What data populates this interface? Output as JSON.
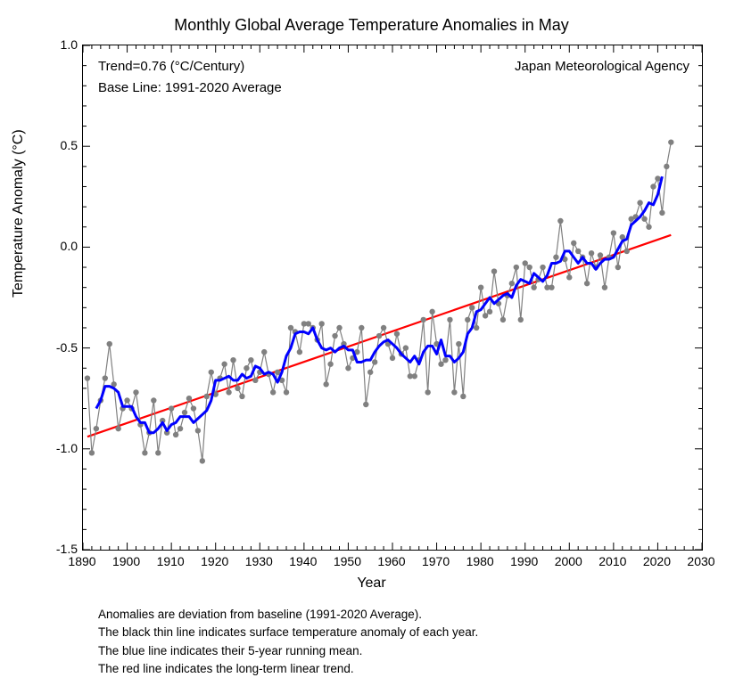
{
  "chart": {
    "type": "line-scatter",
    "title": "Monthly Global Average Temperature Anomalies in May",
    "ylabel": "Temperature Anomaly (°C)",
    "xlabel": "Year",
    "title_fontsize": 18,
    "label_fontsize": 16,
    "tick_fontsize": 14,
    "xlim": [
      1890,
      2030
    ],
    "ylim": [
      -1.5,
      1.0
    ],
    "xtick_step": 10,
    "ytick_step": 0.5,
    "minor_xtick_step": 2,
    "minor_ytick_step": 0.1,
    "background_color": "#ffffff",
    "border_color": "#000000",
    "tick_length_major": 8,
    "tick_length_minor": 4,
    "annotations": {
      "trend": "Trend=0.76 (°C/Century)",
      "baseline": "Base Line: 1991-2020 Average",
      "agency": "Japan Meteorological Agency",
      "annotation_fontsize": 15
    },
    "series": {
      "yearly": {
        "line_color": "#808080",
        "line_width": 1.2,
        "marker_color": "#808080",
        "marker_radius": 3.2,
        "years": [
          1891,
          1892,
          1893,
          1894,
          1895,
          1896,
          1897,
          1898,
          1899,
          1900,
          1901,
          1902,
          1903,
          1904,
          1905,
          1906,
          1907,
          1908,
          1909,
          1910,
          1911,
          1912,
          1913,
          1914,
          1915,
          1916,
          1917,
          1918,
          1919,
          1920,
          1921,
          1922,
          1923,
          1924,
          1925,
          1926,
          1927,
          1928,
          1929,
          1930,
          1931,
          1932,
          1933,
          1934,
          1935,
          1936,
          1937,
          1938,
          1939,
          1940,
          1941,
          1942,
          1943,
          1944,
          1945,
          1946,
          1947,
          1948,
          1949,
          1950,
          1951,
          1952,
          1953,
          1954,
          1955,
          1956,
          1957,
          1958,
          1959,
          1960,
          1961,
          1962,
          1963,
          1964,
          1965,
          1966,
          1967,
          1968,
          1969,
          1970,
          1971,
          1972,
          1973,
          1974,
          1975,
          1976,
          1977,
          1978,
          1979,
          1980,
          1981,
          1982,
          1983,
          1984,
          1985,
          1986,
          1987,
          1988,
          1989,
          1990,
          1991,
          1992,
          1993,
          1994,
          1995,
          1996,
          1997,
          1998,
          1999,
          2000,
          2001,
          2002,
          2003,
          2004,
          2005,
          2006,
          2007,
          2008,
          2009,
          2010,
          2011,
          2012,
          2013,
          2014,
          2015,
          2016,
          2017,
          2018,
          2019,
          2020,
          2021,
          2022,
          2023
        ],
        "values": [
          -0.65,
          -1.02,
          -0.9,
          -0.76,
          -0.65,
          -0.48,
          -0.68,
          -0.9,
          -0.8,
          -0.76,
          -0.8,
          -0.72,
          -0.88,
          -1.02,
          -0.92,
          -0.76,
          -1.02,
          -0.86,
          -0.92,
          -0.8,
          -0.93,
          -0.9,
          -0.82,
          -0.75,
          -0.8,
          -0.91,
          -1.06,
          -0.74,
          -0.62,
          -0.73,
          -0.65,
          -0.58,
          -0.72,
          -0.56,
          -0.7,
          -0.74,
          -0.6,
          -0.56,
          -0.66,
          -0.62,
          -0.52,
          -0.63,
          -0.72,
          -0.62,
          -0.66,
          -0.72,
          -0.4,
          -0.42,
          -0.52,
          -0.38,
          -0.38,
          -0.4,
          -0.46,
          -0.38,
          -0.68,
          -0.58,
          -0.44,
          -0.4,
          -0.48,
          -0.6,
          -0.55,
          -0.52,
          -0.4,
          -0.78,
          -0.62,
          -0.57,
          -0.44,
          -0.4,
          -0.48,
          -0.55,
          -0.43,
          -0.53,
          -0.5,
          -0.64,
          -0.64,
          -0.56,
          -0.36,
          -0.72,
          -0.32,
          -0.48,
          -0.58,
          -0.56,
          -0.36,
          -0.72,
          -0.48,
          -0.74,
          -0.36,
          -0.3,
          -0.4,
          -0.2,
          -0.34,
          -0.32,
          -0.12,
          -0.28,
          -0.36,
          -0.24,
          -0.18,
          -0.1,
          -0.36,
          -0.08,
          -0.1,
          -0.2,
          -0.16,
          -0.1,
          -0.2,
          -0.2,
          -0.05,
          0.13,
          -0.06,
          -0.15,
          0.02,
          -0.02,
          -0.05,
          -0.18,
          -0.03,
          -0.1,
          -0.04,
          -0.2,
          -0.05,
          0.07,
          -0.1,
          0.05,
          -0.02,
          0.14,
          0.15,
          0.22,
          0.14,
          0.1,
          0.3,
          0.34,
          0.17,
          0.4,
          0.52
        ]
      },
      "running_mean": {
        "line_color": "#0000ff",
        "line_width": 3,
        "window": 5,
        "years": [
          1893,
          1894,
          1895,
          1896,
          1897,
          1898,
          1899,
          1900,
          1901,
          1902,
          1903,
          1904,
          1905,
          1906,
          1907,
          1908,
          1909,
          1910,
          1911,
          1912,
          1913,
          1914,
          1915,
          1916,
          1917,
          1918,
          1919,
          1920,
          1921,
          1922,
          1923,
          1924,
          1925,
          1926,
          1927,
          1928,
          1929,
          1930,
          1931,
          1932,
          1933,
          1934,
          1935,
          1936,
          1937,
          1938,
          1939,
          1940,
          1941,
          1942,
          1943,
          1944,
          1945,
          1946,
          1947,
          1948,
          1949,
          1950,
          1951,
          1952,
          1953,
          1954,
          1955,
          1956,
          1957,
          1958,
          1959,
          1960,
          1961,
          1962,
          1963,
          1964,
          1965,
          1966,
          1967,
          1968,
          1969,
          1970,
          1971,
          1972,
          1973,
          1974,
          1975,
          1976,
          1977,
          1978,
          1979,
          1980,
          1981,
          1982,
          1983,
          1984,
          1985,
          1986,
          1987,
          1988,
          1989,
          1990,
          1991,
          1992,
          1993,
          1994,
          1995,
          1996,
          1997,
          1998,
          1999,
          2000,
          2001,
          2002,
          2003,
          2004,
          2005,
          2006,
          2007,
          2008,
          2009,
          2010,
          2011,
          2012,
          2013,
          2014,
          2015,
          2016,
          2017,
          2018,
          2019,
          2020,
          2021
        ],
        "values": [
          -0.8,
          -0.76,
          -0.69,
          -0.69,
          -0.7,
          -0.72,
          -0.79,
          -0.79,
          -0.79,
          -0.84,
          -0.87,
          -0.87,
          -0.92,
          -0.92,
          -0.9,
          -0.87,
          -0.91,
          -0.88,
          -0.87,
          -0.84,
          -0.84,
          -0.84,
          -0.87,
          -0.85,
          -0.83,
          -0.81,
          -0.76,
          -0.66,
          -0.66,
          -0.65,
          -0.64,
          -0.66,
          -0.66,
          -0.63,
          -0.65,
          -0.64,
          -0.59,
          -0.6,
          -0.63,
          -0.62,
          -0.63,
          -0.67,
          -0.62,
          -0.54,
          -0.5,
          -0.43,
          -0.42,
          -0.42,
          -0.43,
          -0.4,
          -0.46,
          -0.5,
          -0.51,
          -0.5,
          -0.52,
          -0.5,
          -0.49,
          -0.51,
          -0.51,
          -0.57,
          -0.57,
          -0.56,
          -0.56,
          -0.52,
          -0.49,
          -0.47,
          -0.46,
          -0.48,
          -0.5,
          -0.53,
          -0.55,
          -0.57,
          -0.54,
          -0.58,
          -0.52,
          -0.49,
          -0.49,
          -0.53,
          -0.46,
          -0.54,
          -0.54,
          -0.57,
          -0.55,
          -0.52,
          -0.43,
          -0.4,
          -0.32,
          -0.31,
          -0.28,
          -0.25,
          -0.28,
          -0.26,
          -0.24,
          -0.23,
          -0.25,
          -0.19,
          -0.16,
          -0.17,
          -0.18,
          -0.13,
          -0.15,
          -0.17,
          -0.14,
          -0.08,
          -0.08,
          -0.07,
          -0.02,
          -0.02,
          -0.05,
          -0.08,
          -0.05,
          -0.08,
          -0.08,
          -0.11,
          -0.08,
          -0.06,
          -0.06,
          -0.05,
          -0.01,
          0.03,
          0.04,
          0.11,
          0.13,
          0.15,
          0.18,
          0.22,
          0.21,
          0.26,
          0.35
        ]
      },
      "trend": {
        "line_color": "#ff0000",
        "line_width": 2.2,
        "start_year": 1891,
        "end_year": 2023,
        "start_value": -0.94,
        "end_value": 0.06
      }
    },
    "caption_lines": [
      "Anomalies are deviation from baseline (1991-2020 Average).",
      "The black thin line indicates surface temperature anomaly of each year.",
      "The blue line indicates their 5-year running mean.",
      "The red line indicates the long-term linear trend."
    ],
    "caption_fontsize": 13.5
  }
}
